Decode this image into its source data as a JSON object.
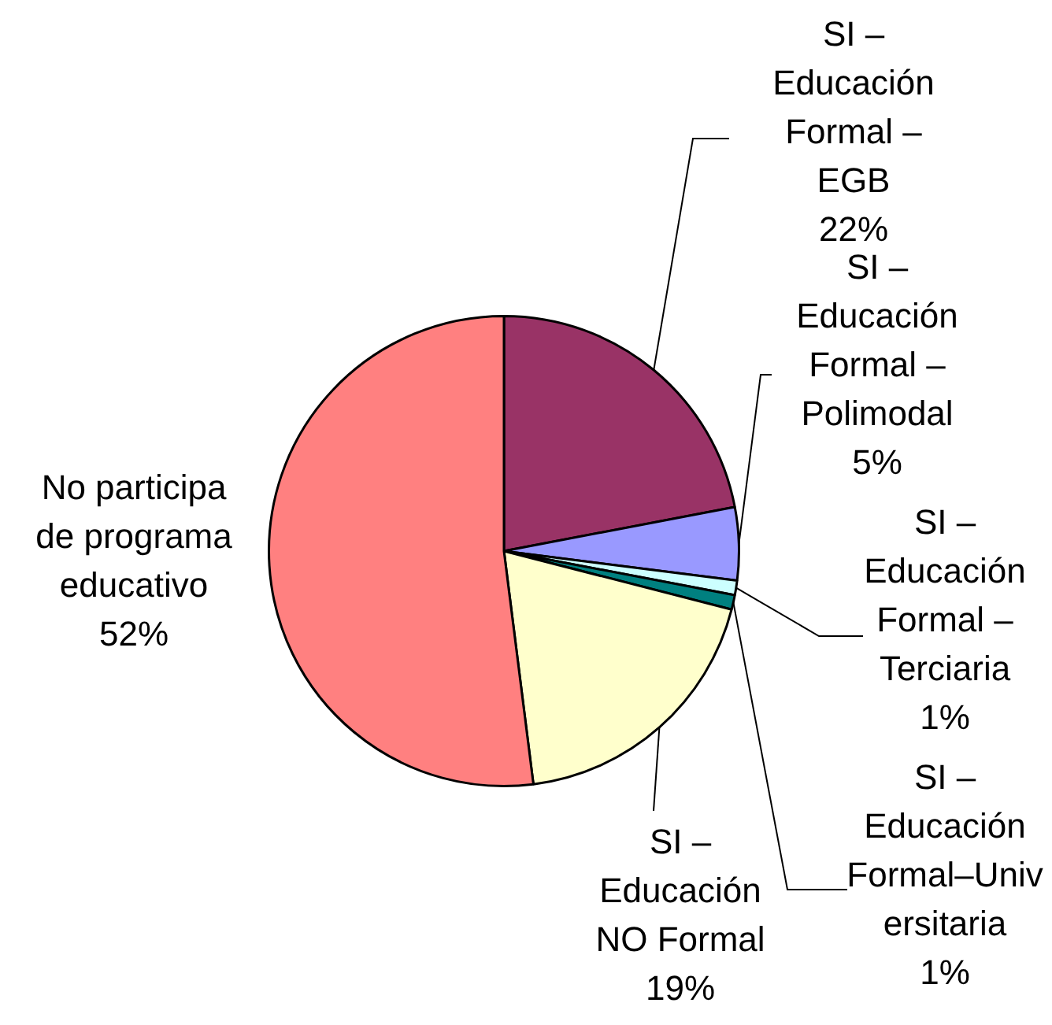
{
  "chart_data": {
    "type": "pie",
    "categories": [
      "SI – Educación Formal – EGB",
      "SI – Educación Formal – Polimodal",
      "SI – Educación Formal – Terciaria",
      "SI – Educación Formal–Universitaria",
      "SI – Educación NO Formal",
      "No participa de programa educativo"
    ],
    "values": [
      22,
      5,
      1,
      1,
      19,
      52
    ],
    "colors": [
      "#993366",
      "#9999ff",
      "#ccffff",
      "#008080",
      "#ffffcc",
      "#ff8080"
    ],
    "value_labels": [
      "22%",
      "5%",
      "1%",
      "1%",
      "19%",
      "52%"
    ],
    "legend": false
  }
}
